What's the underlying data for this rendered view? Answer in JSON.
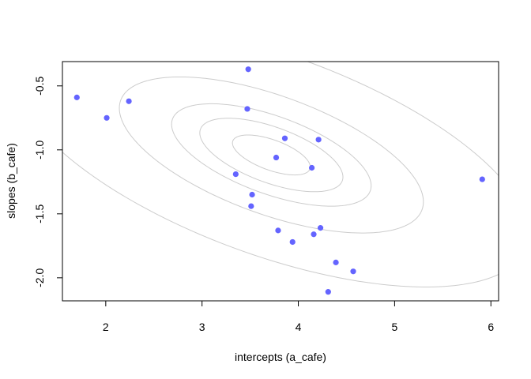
{
  "chart_data": {
    "type": "scatter",
    "title": "",
    "xlabel": "intercepts (a_cafe)",
    "ylabel": "slopes (b_cafe)",
    "xlim": [
      1.55,
      6.08
    ],
    "ylim": [
      -2.18,
      -0.31
    ],
    "x_ticks": [
      2,
      3,
      4,
      5,
      6
    ],
    "y_ticks": [
      -2.0,
      -1.5,
      -1.0,
      -0.5
    ],
    "x_tick_labels": [
      "2",
      "3",
      "4",
      "5",
      "6"
    ],
    "y_tick_labels": [
      "-2.0",
      "-1.5",
      "-1.0",
      "-0.5"
    ],
    "grid": false,
    "point_color": "#6464FF",
    "contour_color": "#CCCCCC",
    "points": [
      {
        "x": 1.7,
        "y": -0.59
      },
      {
        "x": 2.01,
        "y": -0.75
      },
      {
        "x": 2.24,
        "y": -0.62
      },
      {
        "x": 3.35,
        "y": -1.19
      },
      {
        "x": 3.47,
        "y": -0.68
      },
      {
        "x": 3.48,
        "y": -0.37
      },
      {
        "x": 3.51,
        "y": -1.44
      },
      {
        "x": 3.52,
        "y": -1.35
      },
      {
        "x": 3.77,
        "y": -1.06
      },
      {
        "x": 3.79,
        "y": -1.63
      },
      {
        "x": 3.86,
        "y": -0.91
      },
      {
        "x": 3.94,
        "y": -1.72
      },
      {
        "x": 4.14,
        "y": -1.14
      },
      {
        "x": 4.16,
        "y": -1.66
      },
      {
        "x": 4.21,
        "y": -0.92
      },
      {
        "x": 4.23,
        "y": -1.61
      },
      {
        "x": 4.31,
        "y": -2.11
      },
      {
        "x": 4.39,
        "y": -1.88
      },
      {
        "x": 4.57,
        "y": -1.95
      },
      {
        "x": 5.91,
        "y": -1.23
      }
    ],
    "contours": {
      "mean": [
        3.72,
        -1.04
      ],
      "sd": [
        0.88,
        0.34
      ],
      "rho": -0.6,
      "levels": [
        0.1,
        0.3,
        0.5,
        0.8,
        0.99
      ]
    }
  }
}
